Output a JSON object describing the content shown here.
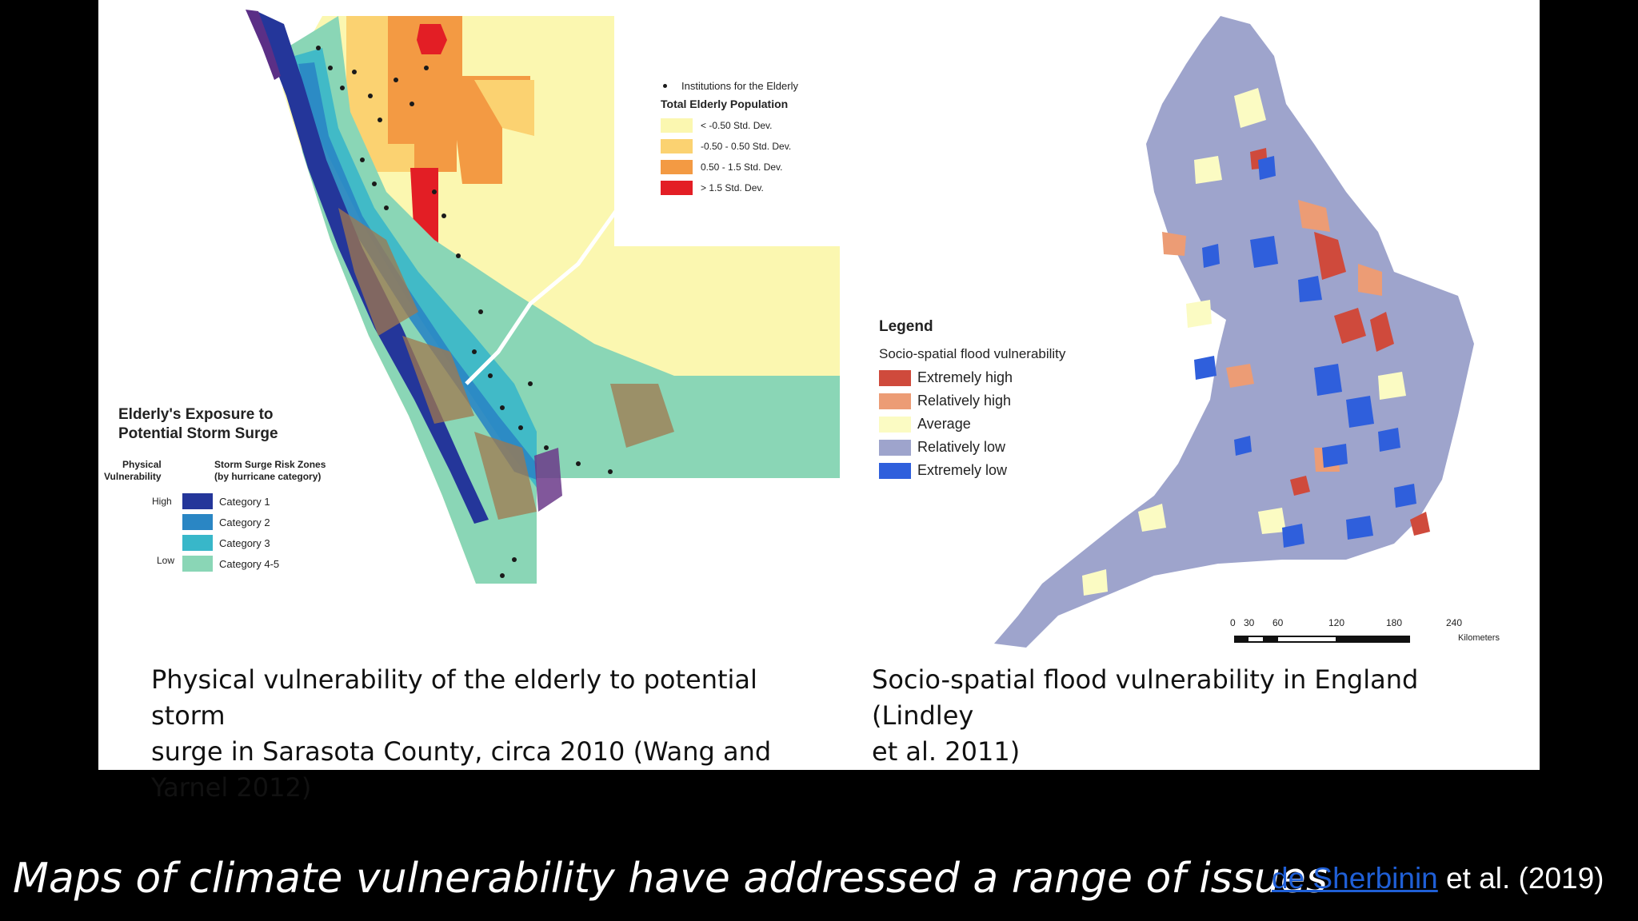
{
  "left_map": {
    "inset_legend": {
      "institutions_label": "Institutions for the Elderly",
      "population_title": "Total Elderly Population",
      "classes": [
        {
          "label": "< -0.50 Std. Dev.",
          "color": "#fbf7b0"
        },
        {
          "label": "-0.50 - 0.50 Std. Dev.",
          "color": "#fbd271"
        },
        {
          "label": "0.50 - 1.5 Std. Dev.",
          "color": "#f39a43"
        },
        {
          "label": "> 1.5 Std. Dev.",
          "color": "#e31e25"
        }
      ]
    },
    "exposure_legend": {
      "title_line1": "Elderly's Exposure to",
      "title_line2": "Potential Storm Surge",
      "vuln_header_line1": "Physical",
      "vuln_header_line2": "Vulnerability",
      "zones_header_line1": "Storm Surge Risk Zones",
      "zones_header_line2": "(by hurricane category)",
      "high_label": "High",
      "low_label": "Low",
      "categories": [
        {
          "label": "Category 1",
          "color": "#24369a"
        },
        {
          "label": "Category 2",
          "color": "#2a86c4"
        },
        {
          "label": "Category 3",
          "color": "#38b7c9"
        },
        {
          "label": "Category 4-5",
          "color": "#8ad6b6"
        }
      ]
    },
    "caption_lines": [
      "Physical vulnerability of the elderly to potential storm",
      "surge in Sarasota County, circa 2010 (Wang and",
      "Yarnel 2012)"
    ]
  },
  "right_map": {
    "legend": {
      "title": "Legend",
      "subtitle": "Socio-spatial flood vulnerability",
      "classes": [
        {
          "label": "Extremely high",
          "color": "#cf4a3c"
        },
        {
          "label": "Relatively high",
          "color": "#ec9c75"
        },
        {
          "label": "Average",
          "color": "#fbfbc3"
        },
        {
          "label": "Relatively low",
          "color": "#9ea4cc"
        },
        {
          "label": "Extremely low",
          "color": "#2f5fdc"
        }
      ]
    },
    "scale_bar": {
      "ticks": [
        "0",
        "30",
        "60",
        "120",
        "180",
        "240"
      ],
      "unit": "Kilometers"
    },
    "caption_lines": [
      "Socio-spatial flood vulnerability in England (Lindley",
      "et al. 2011)"
    ]
  },
  "footer": {
    "caption": "Maps of climate vulnerability have addressed a range of issues",
    "citation_link": "de Sherbinin",
    "citation_rest": " et al. (2019)"
  }
}
